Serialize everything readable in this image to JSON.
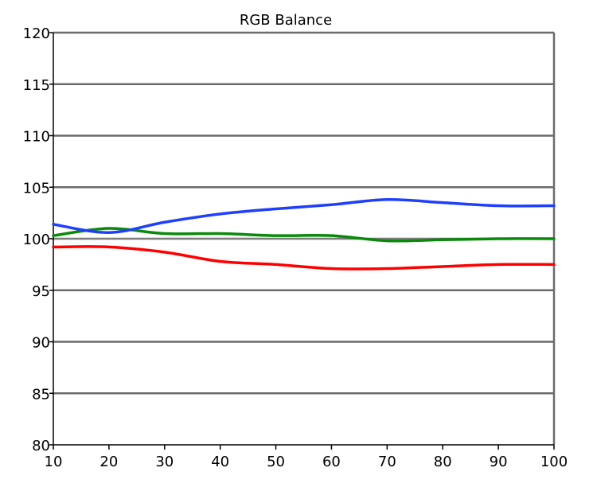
{
  "chart_data": {
    "type": "line",
    "title": "RGB Balance",
    "xlabel": "",
    "ylabel": "",
    "x": [
      10,
      20,
      30,
      40,
      50,
      60,
      70,
      80,
      90,
      100
    ],
    "x_ticks": [
      10,
      20,
      30,
      40,
      50,
      60,
      70,
      80,
      90,
      100
    ],
    "y_ticks": [
      80,
      85,
      90,
      95,
      100,
      105,
      110,
      115,
      120
    ],
    "xlim": [
      10,
      100
    ],
    "ylim": [
      80,
      120
    ],
    "grid": "horizontal",
    "legend": "none",
    "series": [
      {
        "color": "#ff0000",
        "values": [
          99.2,
          99.2,
          98.7,
          97.8,
          97.5,
          97.1,
          97.1,
          97.3,
          97.5,
          97.5
        ]
      },
      {
        "color": "#0a8a0a",
        "values": [
          100.3,
          101.0,
          100.5,
          100.5,
          100.3,
          100.3,
          99.8,
          99.9,
          100.0,
          100.0
        ]
      },
      {
        "color": "#1f3fff",
        "values": [
          101.4,
          100.6,
          101.6,
          102.4,
          102.9,
          103.3,
          103.8,
          103.5,
          103.2,
          103.2
        ]
      }
    ],
    "colors": {
      "gridline": "#6b6b6b",
      "axis": "#000000",
      "reference_line": "#8a8a8a"
    }
  }
}
